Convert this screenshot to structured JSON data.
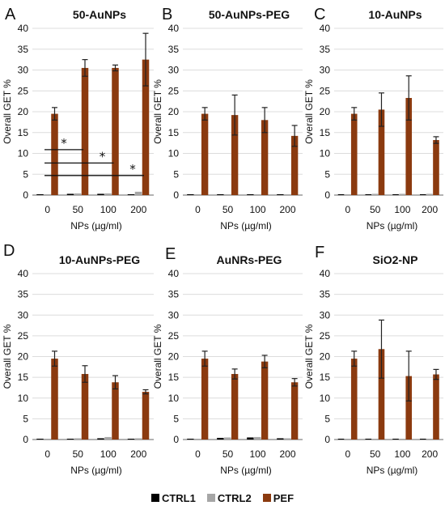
{
  "legend": [
    {
      "name": "CTRL1",
      "color": "#000000"
    },
    {
      "name": "CTRL2",
      "color": "#a6a6a6"
    },
    {
      "name": "PEF",
      "color": "#8b3a0f"
    }
  ],
  "colors": {
    "CTRL1": "#000000",
    "CTRL2": "#a6a6a6",
    "PEF": "#8b3a0f",
    "PEF_highlight": "#ff2a2a"
  },
  "chart_data": [
    {
      "panel": "A",
      "title": "50-AuNPs",
      "type": "bar",
      "categories": [
        "0",
        "50",
        "100",
        "200"
      ],
      "xlabel": "NPs (µg/ml)",
      "ylabel": "Overall GET %",
      "ylim": [
        0,
        40
      ],
      "yticks": [
        0,
        5,
        10,
        15,
        20,
        25,
        30,
        35,
        40
      ],
      "grid": true,
      "series": [
        {
          "name": "CTRL1",
          "values": [
            0.2,
            0.3,
            0.3,
            0.2
          ]
        },
        {
          "name": "CTRL2",
          "values": [
            0.2,
            0.4,
            0.4,
            0.8
          ]
        },
        {
          "name": "PEF",
          "values": [
            19.5,
            30.5,
            30.5,
            32.5
          ],
          "errors": [
            1.5,
            2.0,
            0.7,
            6.3
          ]
        }
      ],
      "significance": [
        {
          "from": "0",
          "to": "50",
          "y": 10.9,
          "label": "*"
        },
        {
          "from": "0",
          "to": "100",
          "y": 7.7,
          "label": "*"
        },
        {
          "from": "0",
          "to": "200",
          "y": 4.7,
          "label": "*"
        }
      ]
    },
    {
      "panel": "B",
      "title": "50-AuNPs-PEG",
      "type": "bar",
      "categories": [
        "0",
        "50",
        "100",
        "200"
      ],
      "xlabel": "NPs (µg/ml)",
      "ylabel": "Overall GET %",
      "ylim": [
        0,
        40
      ],
      "yticks": [
        0,
        5,
        10,
        15,
        20,
        25,
        30,
        35,
        40
      ],
      "grid": true,
      "series": [
        {
          "name": "CTRL1",
          "values": [
            0.2,
            0.2,
            0.2,
            0.2
          ]
        },
        {
          "name": "CTRL2",
          "values": [
            0.2,
            0.2,
            0.2,
            0.2
          ]
        },
        {
          "name": "PEF",
          "values": [
            19.5,
            19.2,
            18.0,
            14.2
          ],
          "errors": [
            1.5,
            4.8,
            3.0,
            2.5
          ]
        }
      ]
    },
    {
      "panel": "C",
      "title": "10-AuNPs",
      "type": "bar",
      "categories": [
        "0",
        "50",
        "100",
        "200"
      ],
      "xlabel": "NPs (µg/ml)",
      "ylabel": "Overall GET %",
      "ylim": [
        0,
        40
      ],
      "yticks": [
        0,
        5,
        10,
        15,
        20,
        25,
        30,
        35,
        40
      ],
      "grid": true,
      "series": [
        {
          "name": "CTRL1",
          "values": [
            0.2,
            0.2,
            0.2,
            0.2
          ]
        },
        {
          "name": "CTRL2",
          "values": [
            0.2,
            0.3,
            0.3,
            0.3
          ]
        },
        {
          "name": "PEF",
          "values": [
            19.5,
            20.5,
            23.3,
            13.2
          ],
          "errors": [
            1.5,
            4.0,
            5.3,
            0.8
          ]
        }
      ]
    },
    {
      "panel": "D",
      "title": "10-AuNPs-PEG",
      "type": "bar",
      "categories": [
        "0",
        "50",
        "100",
        "200"
      ],
      "xlabel": "NPs (µg/ml)",
      "ylabel": "Overall GET %",
      "ylim": [
        0,
        40
      ],
      "yticks": [
        0,
        5,
        10,
        15,
        20,
        25,
        30,
        35,
        40
      ],
      "grid": true,
      "series": [
        {
          "name": "CTRL1",
          "values": [
            0.2,
            0.2,
            0.3,
            0.2
          ]
        },
        {
          "name": "CTRL2",
          "values": [
            0.2,
            0.3,
            0.6,
            0.3
          ]
        },
        {
          "name": "PEF",
          "values": [
            19.5,
            15.8,
            13.8,
            11.5
          ],
          "errors": [
            1.8,
            2.0,
            1.6,
            0.5
          ]
        }
      ]
    },
    {
      "panel": "E",
      "title": "AuNRs-PEG",
      "type": "bar",
      "categories": [
        "0",
        "50",
        "100",
        "200"
      ],
      "xlabel": "NPs (µg/ml)",
      "ylabel": "Overall GET %",
      "ylim": [
        0,
        40
      ],
      "yticks": [
        0,
        5,
        10,
        15,
        20,
        25,
        30,
        35,
        40
      ],
      "grid": true,
      "series": [
        {
          "name": "CTRL1",
          "values": [
            0.2,
            0.4,
            0.5,
            0.3
          ]
        },
        {
          "name": "CTRL2",
          "values": [
            0.2,
            0.5,
            0.6,
            0.3
          ]
        },
        {
          "name": "PEF",
          "values": [
            19.5,
            15.8,
            18.8,
            13.8
          ],
          "errors": [
            1.8,
            1.2,
            1.5,
            0.9
          ]
        }
      ]
    },
    {
      "panel": "F",
      "title": "SiO2-NP",
      "type": "bar",
      "categories": [
        "0",
        "50",
        "100",
        "200"
      ],
      "xlabel": "NPs (µg/ml)",
      "ylabel": "Overall GET %",
      "ylim": [
        0,
        40
      ],
      "yticks": [
        0,
        5,
        10,
        15,
        20,
        25,
        30,
        35,
        40
      ],
      "grid": true,
      "series": [
        {
          "name": "CTRL1",
          "values": [
            0.2,
            0.2,
            0.2,
            0.2
          ]
        },
        {
          "name": "CTRL2",
          "values": [
            0.2,
            0.2,
            0.2,
            0.2
          ]
        },
        {
          "name": "PEF",
          "values": [
            19.5,
            21.8,
            15.3,
            15.7
          ],
          "errors": [
            1.8,
            7.0,
            6.0,
            1.2
          ]
        }
      ]
    }
  ]
}
